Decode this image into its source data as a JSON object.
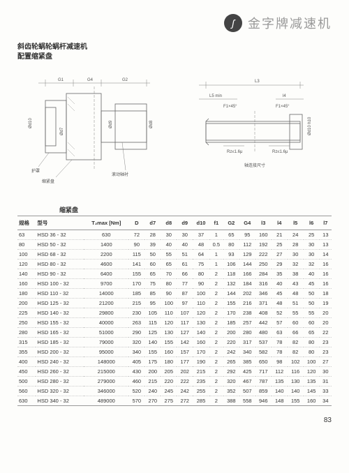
{
  "brand": "金字牌减速机",
  "title_line1": "斜齿轮蜗轮蜗杆减速机",
  "title_line2": "配置缩紧盘",
  "diag1_labels": {
    "g1": "G1",
    "g4": "G4",
    "g2": "G2",
    "d10": "Ød10",
    "d7": "Ød7",
    "d9": "Ød9",
    "d8": "Ød8",
    "huzhao": "护罩",
    "suojin": "缩紧盘",
    "gundong": "滚动轴衬"
  },
  "diag2_labels": {
    "l3": "L3",
    "l5": "L5 min",
    "l4": "l4",
    "f45": "F1×45°",
    "rz1": "Rz≤1.6μ",
    "rz2": "Rz≤1.6μ",
    "label": "轴连接尺寸"
  },
  "table_group_title": "缩紧盘",
  "headers": {
    "spec": "规格",
    "model": "型号",
    "t2max": "T₂max [Nm]",
    "D": "D",
    "d7": "d7",
    "d8": "d8",
    "d9": "d9",
    "d10": "d10",
    "f1": "f1",
    "G2": "G2",
    "G4": "G4",
    "l3": "l3",
    "l4": "l4",
    "l5": "l5",
    "l6": "l6",
    "l7": "l7"
  },
  "rows": [
    [
      "63",
      "HSD 36 - 32",
      "630",
      "72",
      "28",
      "30",
      "30",
      "37",
      "1",
      "65",
      "95",
      "160",
      "21",
      "24",
      "25",
      "13"
    ],
    [
      "80",
      "HSD 50 - 32",
      "1400",
      "90",
      "39",
      "40",
      "40",
      "48",
      "0.5",
      "80",
      "112",
      "192",
      "25",
      "28",
      "30",
      "13"
    ],
    [
      "100",
      "HSD 68 - 32",
      "2200",
      "115",
      "50",
      "55",
      "51",
      "64",
      "1",
      "93",
      "129",
      "222",
      "27",
      "30",
      "30",
      "14"
    ],
    [
      "120",
      "HSD 80 - 32",
      "4600",
      "141",
      "60",
      "65",
      "61",
      "75",
      "1",
      "106",
      "144",
      "250",
      "29",
      "32",
      "32",
      "16"
    ],
    [
      "140",
      "HSD 90 - 32",
      "6400",
      "155",
      "65",
      "70",
      "66",
      "80",
      "2",
      "118",
      "166",
      "284",
      "35",
      "38",
      "40",
      "16"
    ],
    [
      "160",
      "HSD 100 - 32",
      "9700",
      "170",
      "75",
      "80",
      "77",
      "90",
      "2",
      "132",
      "184",
      "316",
      "40",
      "43",
      "45",
      "16"
    ],
    [
      "180",
      "HSD 110 - 32",
      "14000",
      "185",
      "85",
      "90",
      "87",
      "100",
      "2",
      "144",
      "202",
      "346",
      "45",
      "48",
      "50",
      "18"
    ],
    [
      "200",
      "HSD 125 - 32",
      "21200",
      "215",
      "95",
      "100",
      "97",
      "110",
      "2",
      "155",
      "216",
      "371",
      "48",
      "51",
      "50",
      "19"
    ],
    [
      "225",
      "HSD 140 - 32",
      "29800",
      "230",
      "105",
      "110",
      "107",
      "120",
      "2",
      "170",
      "238",
      "408",
      "52",
      "55",
      "55",
      "20"
    ],
    [
      "250",
      "HSD 155 - 32",
      "40000",
      "263",
      "115",
      "120",
      "117",
      "130",
      "2",
      "185",
      "257",
      "442",
      "57",
      "60",
      "60",
      "20"
    ],
    [
      "280",
      "HSD 165 - 32",
      "51000",
      "290",
      "125",
      "130",
      "127",
      "140",
      "2",
      "200",
      "280",
      "480",
      "63",
      "66",
      "65",
      "22"
    ],
    [
      "315",
      "HSD 185 - 32",
      "79000",
      "320",
      "140",
      "155",
      "142",
      "160",
      "2",
      "220",
      "317",
      "537",
      "78",
      "82",
      "80",
      "23"
    ],
    [
      "355",
      "HSD 200 - 32",
      "95000",
      "340",
      "155",
      "160",
      "157",
      "170",
      "2",
      "242",
      "340",
      "582",
      "78",
      "82",
      "80",
      "23"
    ],
    [
      "400",
      "HSD 240 - 32",
      "148000",
      "405",
      "175",
      "180",
      "177",
      "190",
      "2",
      "265",
      "385",
      "650",
      "98",
      "102",
      "100",
      "27"
    ],
    [
      "450",
      "HSD 260 - 32",
      "215000",
      "430",
      "200",
      "205",
      "202",
      "215",
      "2",
      "292",
      "425",
      "717",
      "112",
      "116",
      "120",
      "30"
    ],
    [
      "500",
      "HSD 280 - 32",
      "279000",
      "460",
      "215",
      "220",
      "222",
      "235",
      "2",
      "320",
      "467",
      "787",
      "135",
      "130",
      "135",
      "31"
    ],
    [
      "560",
      "HSD 320 - 32",
      "346000",
      "520",
      "240",
      "245",
      "242",
      "255",
      "2",
      "352",
      "507",
      "859",
      "140",
      "140",
      "145",
      "33"
    ],
    [
      "630",
      "HSD 340 - 32",
      "489000",
      "570",
      "270",
      "275",
      "272",
      "285",
      "2",
      "388",
      "558",
      "946",
      "148",
      "155",
      "160",
      "34"
    ]
  ],
  "page": "83"
}
